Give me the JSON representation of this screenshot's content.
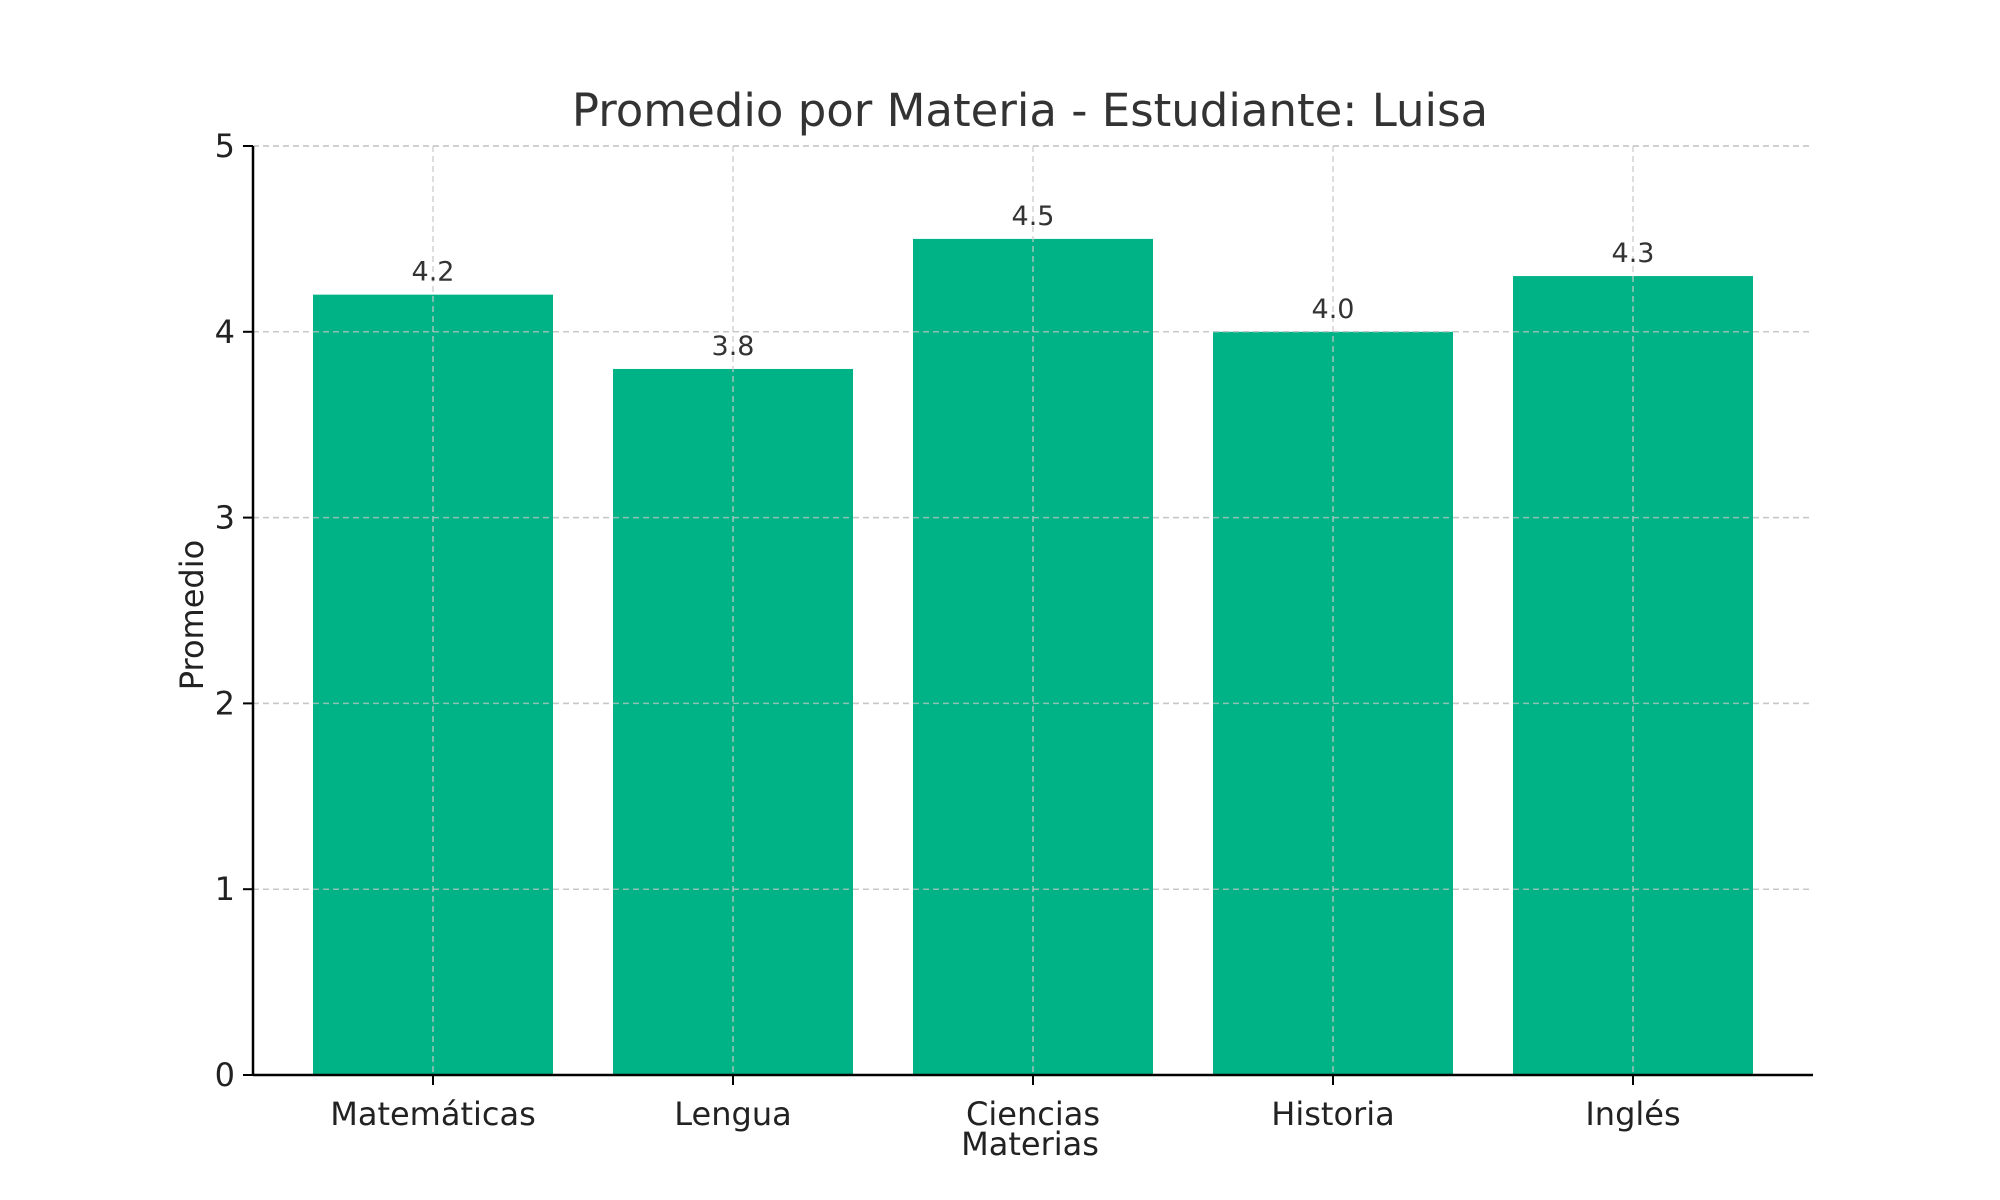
{
  "chart_data": {
    "type": "bar",
    "title": "Promedio por Materia - Estudiante: Luisa",
    "xlabel": "Materias",
    "ylabel": "Promedio",
    "categories": [
      "Matemáticas",
      "Lengua",
      "Ciencias",
      "Historia",
      "Inglés"
    ],
    "values": [
      4.2,
      3.8,
      4.5,
      4.0,
      4.3
    ],
    "value_labels": [
      "4.2",
      "3.8",
      "4.5",
      "4.0",
      "4.3"
    ],
    "yticks": [
      "0",
      "1",
      "2",
      "3",
      "4",
      "5"
    ],
    "ylim": [
      0,
      5
    ],
    "grid": true,
    "bar_color": "#00b386"
  }
}
